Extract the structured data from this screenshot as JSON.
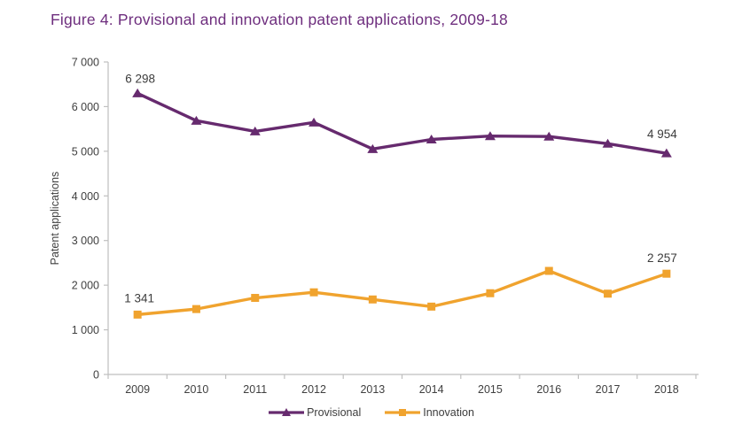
{
  "title": "Figure 4: Provisional and innovation patent applications, 2009-18",
  "colors": {
    "title_text": "#6E2E7E",
    "axis_line": "#BFBFBF",
    "tick_text": "#404040",
    "annotation_text": "#3C3C3C",
    "provisional": "#662A6E",
    "innovation": "#F0A32E"
  },
  "chart_data": {
    "type": "line",
    "title": "Figure 4: Provisional and innovation patent applications, 2009-18",
    "categories": [
      "2009",
      "2010",
      "2011",
      "2012",
      "2013",
      "2014",
      "2015",
      "2016",
      "2017",
      "2018"
    ],
    "series": [
      {
        "name": "Provisional",
        "color": "#662A6E",
        "marker": "triangle",
        "values": [
          6298,
          5685,
          5445,
          5645,
          5050,
          5265,
          5340,
          5330,
          5170,
          4954
        ],
        "point_labels": [
          {
            "index": 0,
            "text": "6 298",
            "dx": 3,
            "dy": -12
          },
          {
            "index": 9,
            "text": "4 954",
            "dx": -5,
            "dy": -17
          }
        ]
      },
      {
        "name": "Innovation",
        "color": "#F0A32E",
        "marker": "square",
        "values": [
          1341,
          1465,
          1715,
          1840,
          1680,
          1520,
          1820,
          2320,
          1810,
          2257
        ],
        "point_labels": [
          {
            "index": 0,
            "text": "1 341",
            "dx": 2,
            "dy": -14
          },
          {
            "index": 9,
            "text": "2 257",
            "dx": -5,
            "dy": -13
          }
        ]
      }
    ],
    "xlabel": "",
    "ylabel": "Patent applications",
    "ylim": [
      0,
      7000
    ],
    "y_tick_step": 1000,
    "y_tick_labels": [
      "0",
      "1 000",
      "2 000",
      "3 000",
      "4 000",
      "5 000",
      "6 000",
      "7 000"
    ],
    "grid": false,
    "legend_position": "bottom"
  },
  "legend": {
    "items": [
      {
        "label": "Provisional"
      },
      {
        "label": "Innovation"
      }
    ]
  }
}
